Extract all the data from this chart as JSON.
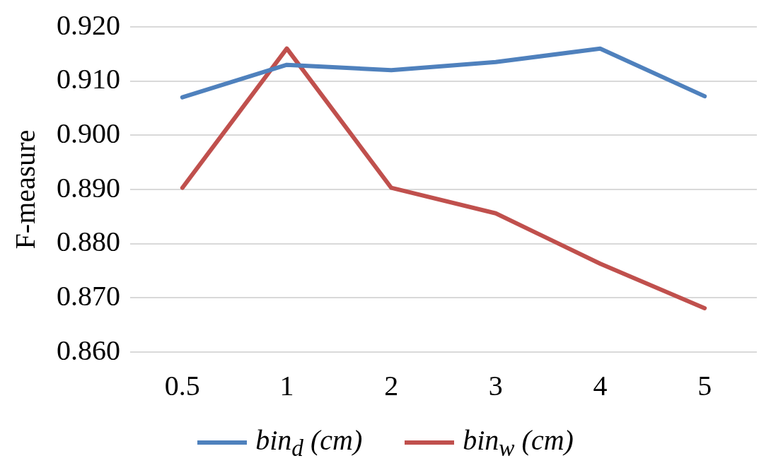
{
  "chart_data": {
    "type": "line",
    "ylabel": "F-measure",
    "categories": [
      "0.5",
      "1",
      "2",
      "3",
      "4",
      "5"
    ],
    "series": [
      {
        "name": "bin$_{d}$ (cm)",
        "color": "#4f81bd",
        "values": [
          0.907,
          0.913,
          0.912,
          0.9135,
          0.916,
          0.9072
        ]
      },
      {
        "name": "bin$_{w}$ (cm)",
        "color": "#c0504d",
        "values": [
          0.8903,
          0.916,
          0.8903,
          0.8856,
          0.8763,
          0.8681
        ]
      }
    ],
    "ylim": [
      0.86,
      0.92
    ],
    "yticks": [
      {
        "value": 0.86,
        "label": "0.860"
      },
      {
        "value": 0.87,
        "label": "0.870"
      },
      {
        "value": 0.88,
        "label": "0.880"
      },
      {
        "value": 0.89,
        "label": "0.890"
      },
      {
        "value": 0.9,
        "label": "0.900"
      },
      {
        "value": 0.91,
        "label": "0.910"
      },
      {
        "value": 0.92,
        "label": "0.920"
      }
    ],
    "grid": "y",
    "legend": "bottom",
    "marker": "none",
    "line_style": "solid"
  }
}
